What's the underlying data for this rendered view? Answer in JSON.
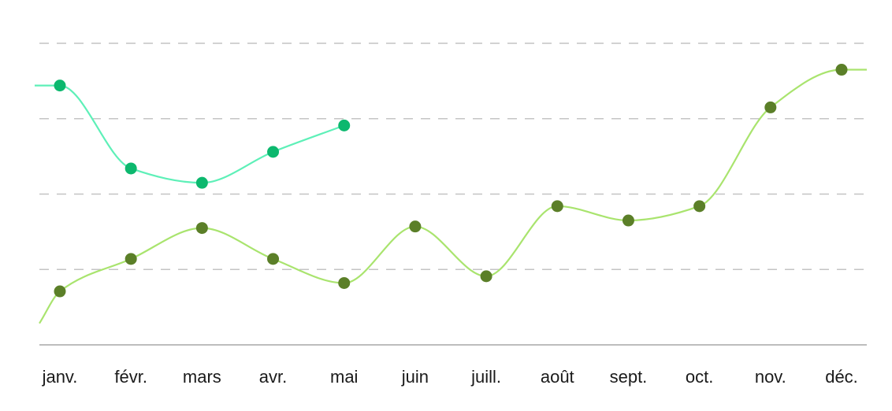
{
  "chart_data": {
    "type": "line",
    "categories": [
      "janv.",
      "févr.",
      "mars",
      "avr.",
      "mai",
      "juin",
      "juill.",
      "août",
      "sept.",
      "oct.",
      "nov.",
      "déc."
    ],
    "ylim": [
      0,
      4
    ],
    "grid": true,
    "series": [
      {
        "values": [
          3.44,
          2.34,
          2.15,
          2.56,
          2.91,
          null,
          null,
          null,
          null,
          null,
          null,
          null
        ],
        "line_color": "#5ef0b8",
        "point_color": "#0cb86e"
      },
      {
        "values": [
          0.71,
          1.14,
          1.55,
          1.14,
          0.82,
          1.57,
          0.91,
          1.84,
          1.65,
          1.84,
          3.15,
          3.65
        ],
        "line_color": "#a9e46e",
        "point_color": "#5b7f28"
      }
    ]
  }
}
